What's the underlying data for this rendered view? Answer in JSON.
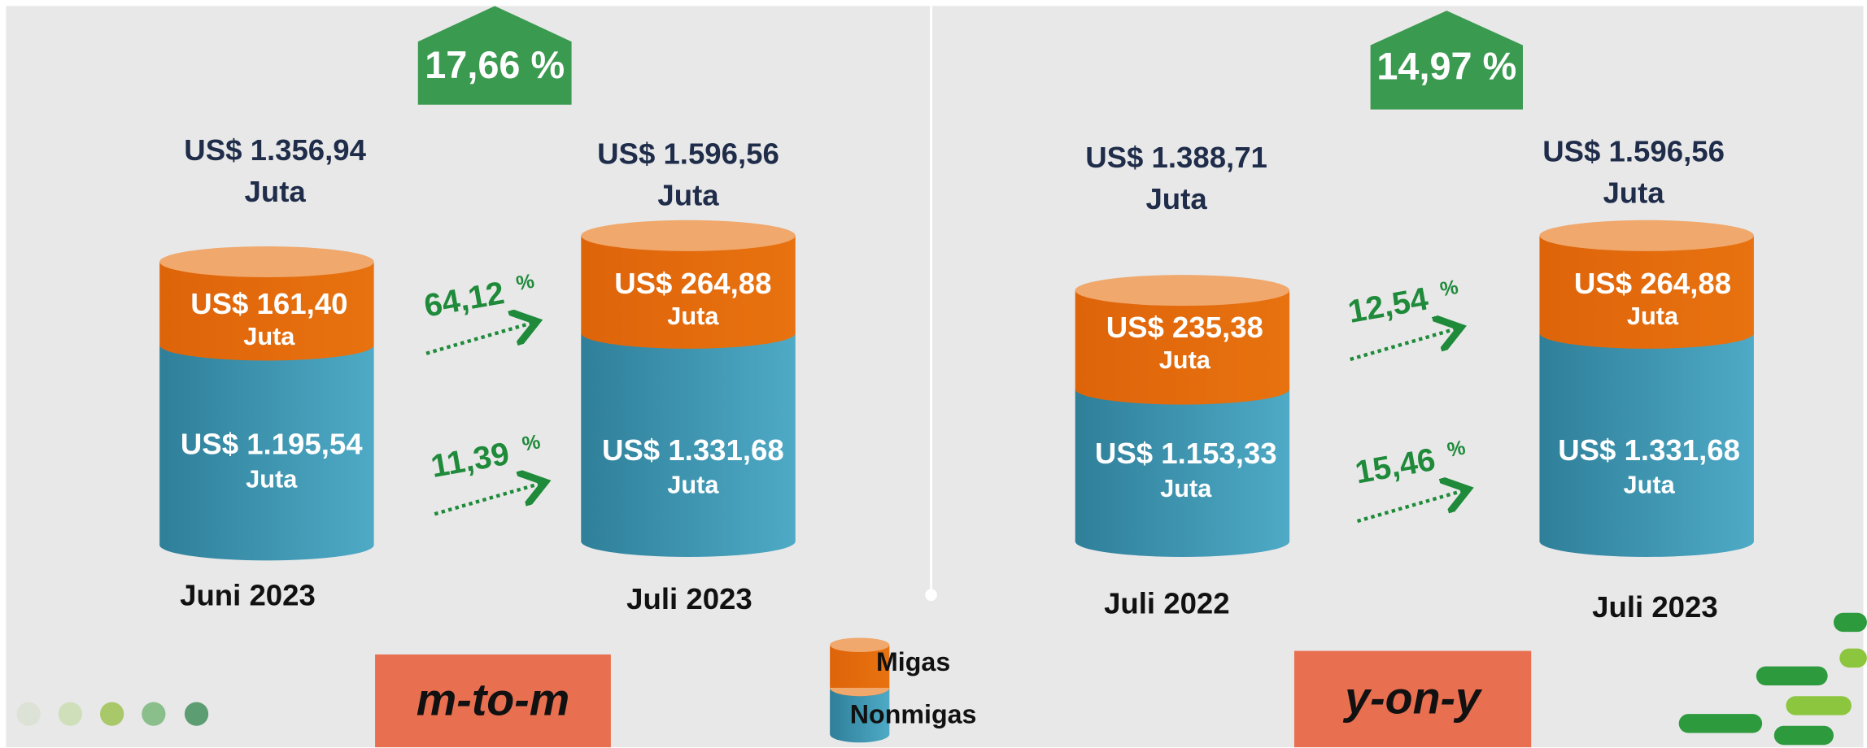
{
  "panels": [
    {
      "growth": "17,66 %",
      "badge": "m-to-m",
      "cylinders": [
        {
          "total": "US$ 1.356,94",
          "migas": "US$ 161,40",
          "nonmigas": "US$ 1.195,54",
          "period": "Juni 2023"
        },
        {
          "total": "US$ 1.596,56",
          "migas": "US$ 264,88",
          "nonmigas": "US$ 1.331,68",
          "period": "Juli 2023"
        }
      ],
      "changes": [
        {
          "value": "64,12",
          "unit": "%"
        },
        {
          "value": "11,39",
          "unit": "%"
        }
      ]
    },
    {
      "growth": "14,97 %",
      "badge": "y-on-y",
      "cylinders": [
        {
          "total": "US$ 1.388,71",
          "migas": "US$ 235,38",
          "nonmigas": "US$ 1.153,33",
          "period": "Juli 2022"
        },
        {
          "total": "US$ 1.596,56",
          "migas": "US$ 264,88",
          "nonmigas": "US$ 1.331,68",
          "period": "Juli 2023"
        }
      ],
      "changes": [
        {
          "value": "12,54",
          "unit": "%"
        },
        {
          "value": "15,46",
          "unit": "%"
        }
      ]
    }
  ],
  "unit": "Juta",
  "legend": [
    "Migas",
    "Nonmigas"
  ]
}
